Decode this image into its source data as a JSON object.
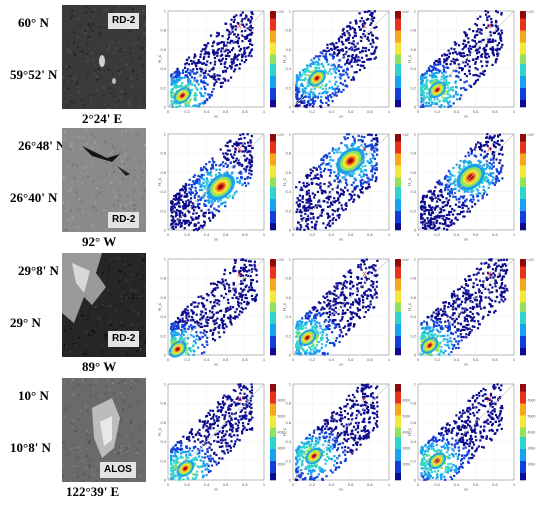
{
  "rows": [
    {
      "lat_top": "60° N",
      "lat_mid": "59°52' N",
      "lon": "2°24' E",
      "sensor": "RD-2",
      "image_style": "row1",
      "colorbar_max_label": "×10⁴",
      "colorbar_ticks": [
        "",
        "",
        "",
        "",
        ""
      ]
    },
    {
      "lat_top": "26°48' N",
      "lat_mid": "26°40' N",
      "lon": "92° W",
      "sensor": "RD-2",
      "image_style": "row2",
      "colorbar_max_label": "×10⁴",
      "colorbar_ticks": [
        "",
        "",
        "",
        "",
        ""
      ]
    },
    {
      "lat_top": "29°8' N",
      "lat_mid": "29° N",
      "lon": "89° W",
      "sensor": "RD-2",
      "image_style": "row3",
      "colorbar_max_label": "×10⁴",
      "colorbar_ticks": [
        "",
        "",
        "",
        "",
        ""
      ]
    },
    {
      "lat_top": "10° N",
      "lat_mid": "10°8' N",
      "lon": "122°39' E",
      "sensor": "ALOS",
      "image_style": "row4",
      "colorbar_max_label": "",
      "colorbar_ticks": [
        "2000",
        "3000",
        "4000",
        "5000",
        "6000"
      ]
    }
  ],
  "chart_data": {
    "type": "heatmap",
    "description_axes": {
      "xlabel": "H",
      "ylabel": "H_c"
    },
    "xlim": [
      0,
      1
    ],
    "ylim": [
      0,
      1
    ],
    "xticks": [
      "0",
      "0.2",
      "0.4",
      "0.6",
      "0.8",
      "1"
    ],
    "yticks": [
      "0",
      "0.2",
      "0.4",
      "0.6",
      "0.8",
      "1"
    ],
    "diagonal_reference_line": true,
    "marker": "X",
    "panels": [
      {
        "row": 0,
        "col": 0,
        "peak_x": 0.15,
        "peak_y": 0.12,
        "shape": "low-left",
        "marker_x": 0.72,
        "marker_y": 0.82
      },
      {
        "row": 0,
        "col": 1,
        "peak_x": 0.25,
        "peak_y": 0.3,
        "shape": "mid",
        "marker_x": 0.72,
        "marker_y": 0.82
      },
      {
        "row": 0,
        "col": 2,
        "peak_x": 0.2,
        "peak_y": 0.18,
        "shape": "low-left",
        "marker_x": 0.72,
        "marker_y": 0.82
      },
      {
        "row": 1,
        "col": 0,
        "peak_x": 0.55,
        "peak_y": 0.45,
        "shape": "center",
        "marker_x": 0.72,
        "marker_y": 0.82
      },
      {
        "row": 1,
        "col": 1,
        "peak_x": 0.6,
        "peak_y": 0.72,
        "shape": "upper",
        "marker_x": 0.72,
        "marker_y": 0.82
      },
      {
        "row": 1,
        "col": 2,
        "peak_x": 0.55,
        "peak_y": 0.55,
        "shape": "center",
        "marker_x": 0.72,
        "marker_y": 0.82
      },
      {
        "row": 2,
        "col": 0,
        "peak_x": 0.1,
        "peak_y": 0.06,
        "shape": "corner",
        "marker_x": 0.72,
        "marker_y": 0.82
      },
      {
        "row": 2,
        "col": 1,
        "peak_x": 0.15,
        "peak_y": 0.18,
        "shape": "low-left",
        "marker_x": 0.72,
        "marker_y": 0.82
      },
      {
        "row": 2,
        "col": 2,
        "peak_x": 0.12,
        "peak_y": 0.1,
        "shape": "corner",
        "marker_x": 0.72,
        "marker_y": 0.82
      },
      {
        "row": 3,
        "col": 0,
        "peak_x": 0.18,
        "peak_y": 0.12,
        "shape": "low-left",
        "marker_x": 0.72,
        "marker_y": 0.82
      },
      {
        "row": 3,
        "col": 1,
        "peak_x": 0.22,
        "peak_y": 0.25,
        "shape": "mid",
        "marker_x": 0.72,
        "marker_y": 0.82
      },
      {
        "row": 3,
        "col": 2,
        "peak_x": 0.2,
        "peak_y": 0.2,
        "shape": "low-left",
        "marker_x": 0.72,
        "marker_y": 0.82
      }
    ]
  },
  "colors": {
    "cmap": [
      "#0b0a8f",
      "#0f3fd6",
      "#1aa0f0",
      "#2ed3d0",
      "#8fe35a",
      "#f5e63a",
      "#f7a61f",
      "#e5321a",
      "#8e0b0b"
    ],
    "marker": "#e0282e"
  }
}
